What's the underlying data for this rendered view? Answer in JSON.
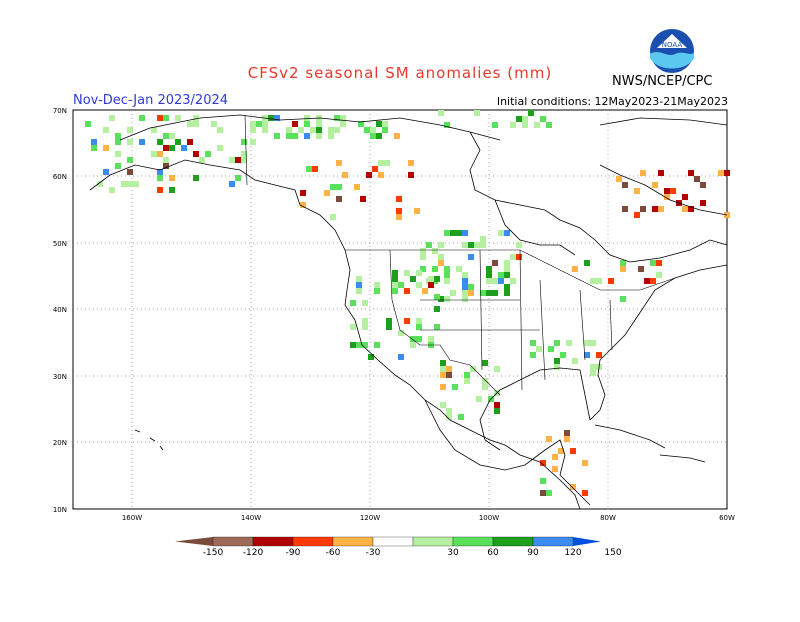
{
  "header": {
    "title": "CFSv2 seasonal SM anomalies (mm)",
    "season": "Nov-Dec-Jan 2023/2024",
    "init": "Initial conditions: 12May2023-21May2023",
    "agency": "NWS/NCEP/CPC",
    "logo_text": "NOAA"
  },
  "axes": {
    "lat_labels": [
      "70N",
      "60N",
      "50N",
      "40N",
      "30N",
      "20N",
      "10N"
    ],
    "lon_labels": [
      "160W",
      "140W",
      "120W",
      "100W",
      "80W",
      "60W"
    ]
  },
  "legend": {
    "labels": [
      "-150",
      "-120",
      "-90",
      "-60",
      "-30",
      "30",
      "60",
      "90",
      "120",
      "150"
    ],
    "colors": [
      "#7b4a3a",
      "#a06a5a",
      "#b20000",
      "#ff3a00",
      "#ffb347",
      "#ffffff",
      "#b4f0a0",
      "#5ae05a",
      "#1ea01e",
      "#3c8cf0",
      "#0050e0"
    ]
  },
  "colors": {
    "dry": [
      "#7b4a3a",
      "#b20000",
      "#ff3a00",
      "#ffb347"
    ],
    "wet": [
      "#b4f0a0",
      "#5ae05a",
      "#1ea01e",
      "#3c8cf0"
    ]
  }
}
